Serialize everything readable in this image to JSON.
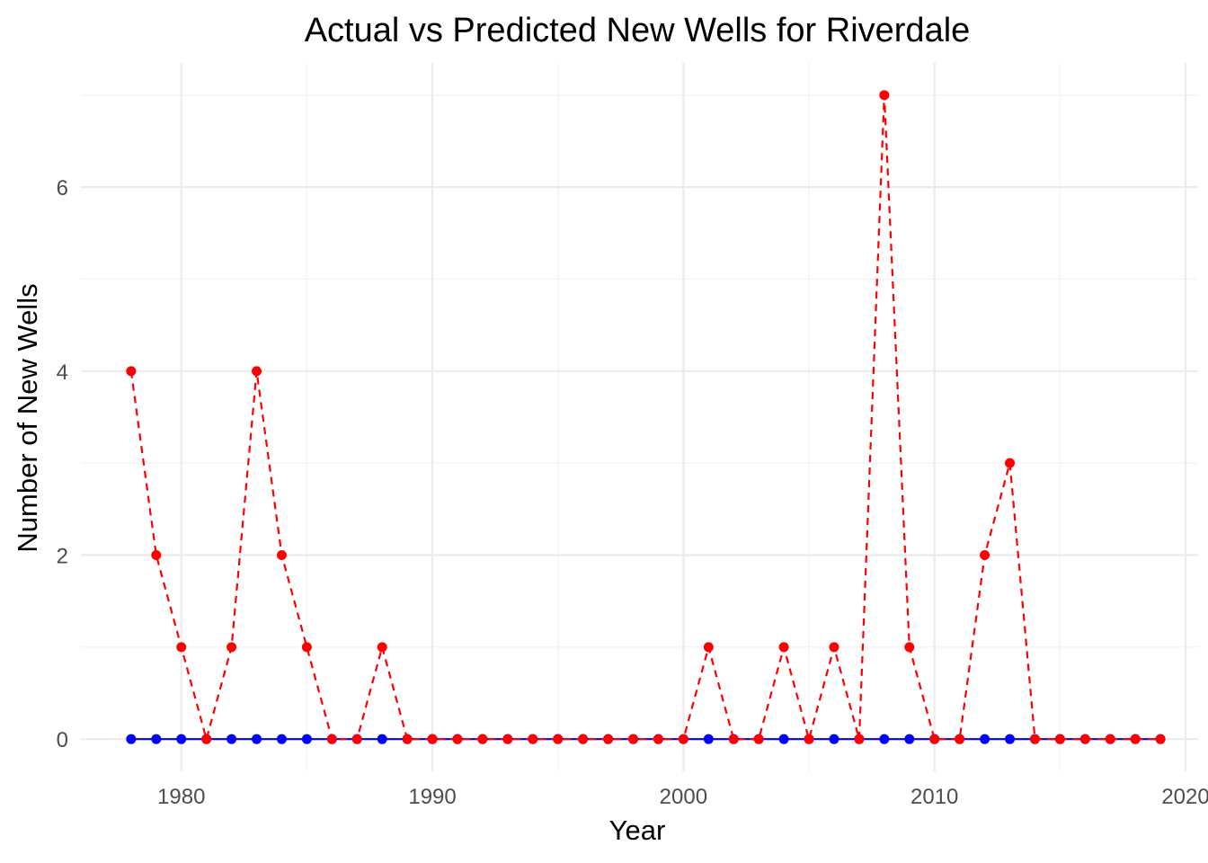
{
  "chart_data": {
    "type": "line",
    "title": "Actual vs Predicted New Wells for Riverdale",
    "xlabel": "Year",
    "ylabel": "Number of New Wells",
    "xlim": [
      1976,
      2020.5
    ],
    "ylim": [
      -0.35,
      7.35
    ],
    "x_ticks": [
      1980,
      1990,
      2000,
      2010,
      2020
    ],
    "y_ticks": [
      0,
      2,
      4,
      6
    ],
    "grid": true,
    "legend": "none",
    "x": [
      1978,
      1979,
      1980,
      1981,
      1982,
      1983,
      1984,
      1985,
      1986,
      1987,
      1988,
      1989,
      1990,
      1991,
      1992,
      1993,
      1994,
      1995,
      1996,
      1997,
      1998,
      1999,
      2000,
      2001,
      2002,
      2003,
      2004,
      2005,
      2006,
      2007,
      2008,
      2009,
      2010,
      2011,
      2012,
      2013,
      2014,
      2015,
      2016,
      2017,
      2018,
      2019
    ],
    "series": [
      {
        "color": "#0000ff",
        "line_style": "solid",
        "values": [
          0,
          0,
          0,
          0,
          0,
          0,
          0,
          0,
          0,
          0,
          0,
          0,
          0,
          0,
          0,
          0,
          0,
          0,
          0,
          0,
          0,
          0,
          0,
          0,
          0,
          0,
          0,
          0,
          0,
          0,
          0,
          0,
          0,
          0,
          0,
          0,
          0,
          0,
          0,
          0,
          0,
          0
        ]
      },
      {
        "color": "#ff0000",
        "line_style": "dashed",
        "values": [
          4,
          2,
          1,
          0,
          1,
          4,
          2,
          1,
          0,
          0,
          1,
          0,
          0,
          0,
          0,
          0,
          0,
          0,
          0,
          0,
          0,
          0,
          0,
          1,
          0,
          0,
          1,
          0,
          1,
          0,
          7,
          1,
          0,
          0,
          2,
          3,
          0,
          0,
          0,
          0,
          0,
          0
        ]
      }
    ]
  }
}
